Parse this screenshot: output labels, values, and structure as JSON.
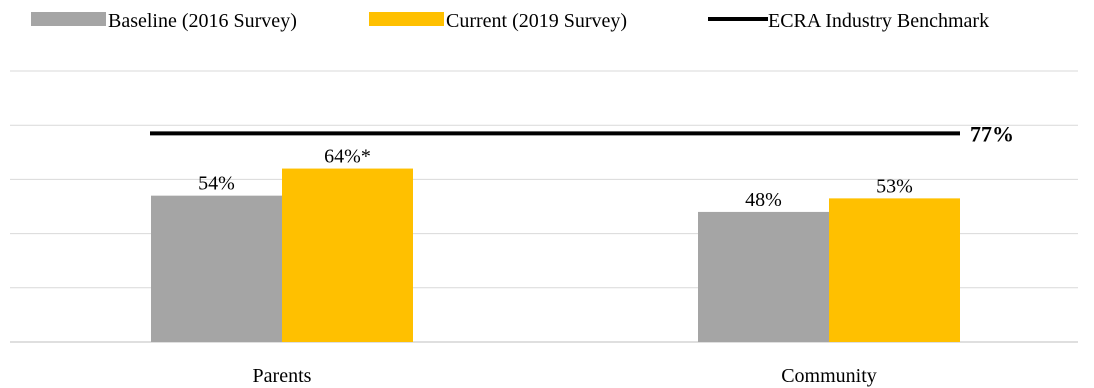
{
  "chart_data": {
    "type": "bar",
    "categories": [
      "Parents",
      "Community"
    ],
    "series": [
      {
        "name": "Baseline (2016 Survey)",
        "values": [
          54,
          48
        ],
        "labels": [
          "54%",
          "48%"
        ],
        "color": "#a5a5a5"
      },
      {
        "name": "Current (2019 Survey)",
        "values": [
          64,
          53
        ],
        "labels": [
          "64%*",
          "53%"
        ],
        "color": "#ffc000"
      }
    ],
    "benchmark": {
      "name": "ECRA Industry Benchmark",
      "value": 77,
      "label": "77%",
      "color": "#000000"
    },
    "ylim": [
      0,
      100
    ],
    "grid": true,
    "legend": "top",
    "title": "",
    "xlabel": "",
    "ylabel": ""
  }
}
